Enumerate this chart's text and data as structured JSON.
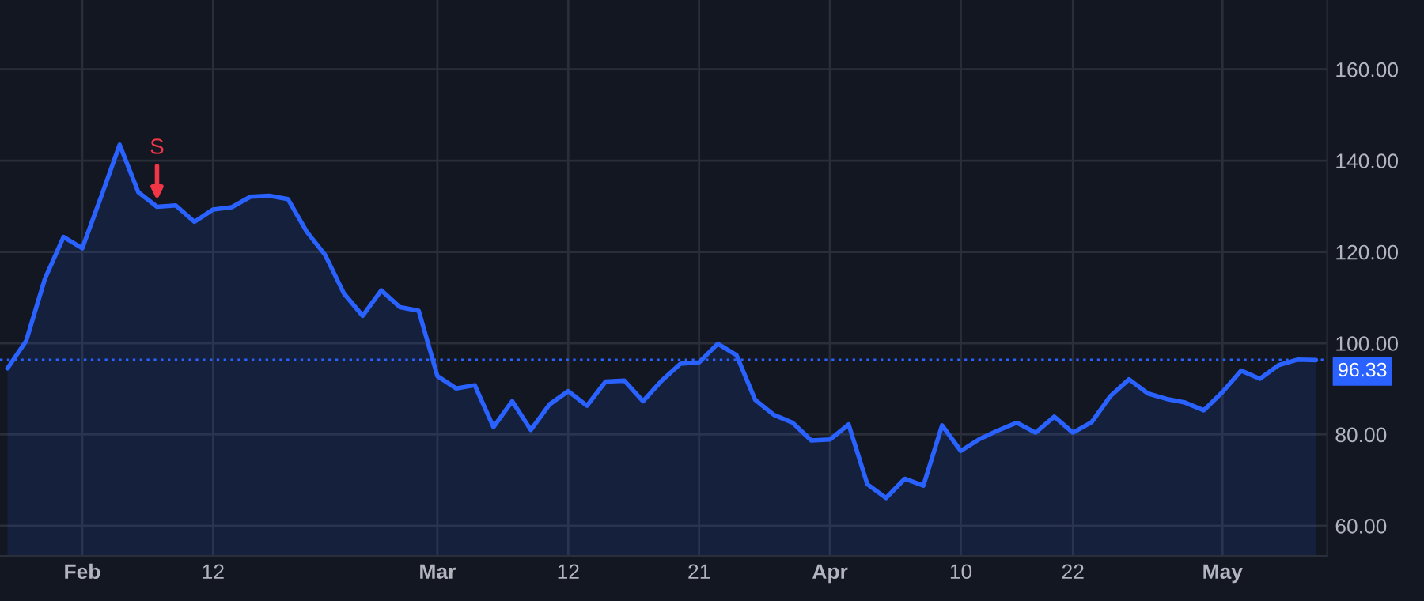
{
  "chart_data": {
    "type": "area",
    "categories": [
      null,
      null,
      null,
      null,
      "Feb",
      null,
      null,
      null,
      null,
      null,
      null,
      "12",
      null,
      null,
      null,
      null,
      null,
      null,
      null,
      null,
      null,
      null,
      null,
      "Mar",
      null,
      null,
      null,
      null,
      null,
      null,
      "12",
      null,
      null,
      null,
      null,
      null,
      null,
      "21",
      null,
      null,
      null,
      null,
      null,
      null,
      "Apr",
      null,
      null,
      null,
      null,
      null,
      null,
      "10",
      null,
      null,
      null,
      null,
      null,
      "22",
      null,
      null,
      null,
      null,
      null,
      null,
      null,
      "May",
      null,
      null,
      null,
      null,
      null
    ],
    "series": [
      {
        "color": "#2962ff",
        "values": [
          94.5,
          100.5,
          114.1,
          123.3,
          120.8,
          132,
          143.5,
          133.1,
          129.9,
          130.2,
          126.6,
          129.3,
          129.8,
          132.1,
          132.3,
          131.6,
          124.5,
          119.3,
          110.9,
          106,
          111.6,
          107.9,
          107.1,
          92.8,
          90.1,
          90.8,
          81.6,
          87.3,
          81,
          86.6,
          89.5,
          86.3,
          91.6,
          91.8,
          87.3,
          91.8,
          95.5,
          95.8,
          99.9,
          97.4,
          87.6,
          84.3,
          82.6,
          78.7,
          78.9,
          82.2,
          69.1,
          66.1,
          70.3,
          68.8,
          82,
          76.4,
          79,
          80.9,
          82.6,
          80.4,
          83.9,
          80.4,
          82.7,
          88.4,
          92.1,
          89,
          87.8,
          87,
          85.3,
          89.3,
          94,
          92.2,
          95.2,
          96.4,
          96.3
        ]
      }
    ],
    "ylim": [
      53.4,
      175.2
    ],
    "yticks": [
      {
        "value": 60,
        "label": "60.00"
      },
      {
        "value": 80,
        "label": "80.00"
      },
      {
        "value": 100,
        "label": "100.00"
      },
      {
        "value": 120,
        "label": "120.00"
      },
      {
        "value": 140,
        "label": "140.00"
      },
      {
        "value": 160,
        "label": "160.00"
      }
    ],
    "grid": true,
    "ref_lines": [
      {
        "axis": "y",
        "value": 96.33,
        "label": "96.33",
        "color": "#2962ff",
        "line_style": "dotted"
      }
    ],
    "annotations": [
      {
        "text": "S",
        "y": 129.9
      }
    ]
  }
}
